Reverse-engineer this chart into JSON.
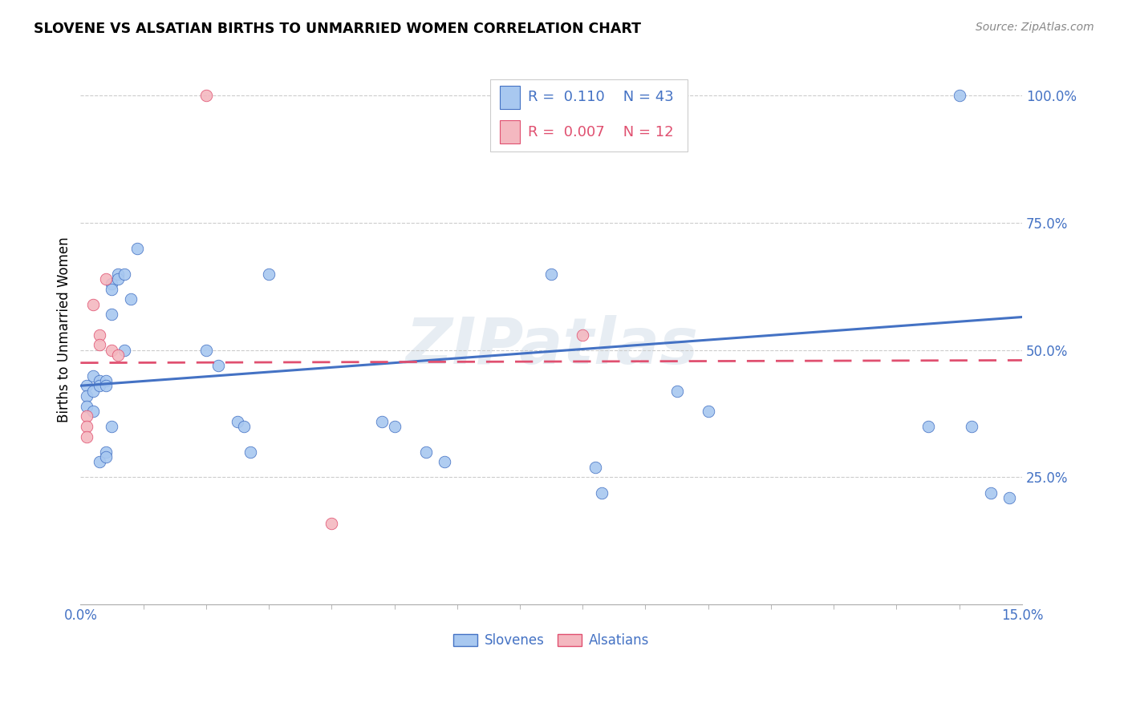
{
  "title": "SLOVENE VS ALSATIAN BIRTHS TO UNMARRIED WOMEN CORRELATION CHART",
  "source": "Source: ZipAtlas.com",
  "ylabel": "Births to Unmarried Women",
  "xmin": 0.0,
  "xmax": 0.15,
  "ymin": 0.0,
  "ymax": 1.08,
  "slovene_color": "#a8c8f0",
  "alsatian_color": "#f4b8c0",
  "line_blue": "#4472c4",
  "line_pink": "#e05070",
  "watermark": "ZIPatlas",
  "slovene_line_y0": 0.43,
  "slovene_line_y1": 0.565,
  "alsatian_line_y0": 0.475,
  "alsatian_line_y1": 0.48,
  "slovene_x": [
    0.001,
    0.001,
    0.001,
    0.002,
    0.002,
    0.002,
    0.003,
    0.003,
    0.003,
    0.004,
    0.004,
    0.004,
    0.004,
    0.005,
    0.005,
    0.005,
    0.005,
    0.006,
    0.006,
    0.007,
    0.007,
    0.008,
    0.009,
    0.02,
    0.022,
    0.025,
    0.026,
    0.027,
    0.03,
    0.048,
    0.05,
    0.055,
    0.058,
    0.075,
    0.082,
    0.083,
    0.095,
    0.1,
    0.135,
    0.14,
    0.142,
    0.145,
    0.148
  ],
  "slovene_y": [
    0.43,
    0.41,
    0.39,
    0.45,
    0.42,
    0.38,
    0.44,
    0.43,
    0.28,
    0.44,
    0.43,
    0.3,
    0.29,
    0.63,
    0.62,
    0.57,
    0.35,
    0.65,
    0.64,
    0.65,
    0.5,
    0.6,
    0.7,
    0.5,
    0.47,
    0.36,
    0.35,
    0.3,
    0.65,
    0.36,
    0.35,
    0.3,
    0.28,
    0.65,
    0.27,
    0.22,
    0.42,
    0.38,
    0.35,
    1.0,
    0.35,
    0.22,
    0.21
  ],
  "alsatian_x": [
    0.001,
    0.001,
    0.001,
    0.002,
    0.003,
    0.003,
    0.004,
    0.005,
    0.006,
    0.02,
    0.04,
    0.08
  ],
  "alsatian_y": [
    0.37,
    0.35,
    0.33,
    0.59,
    0.53,
    0.51,
    0.64,
    0.5,
    0.49,
    1.0,
    0.16,
    0.53
  ]
}
